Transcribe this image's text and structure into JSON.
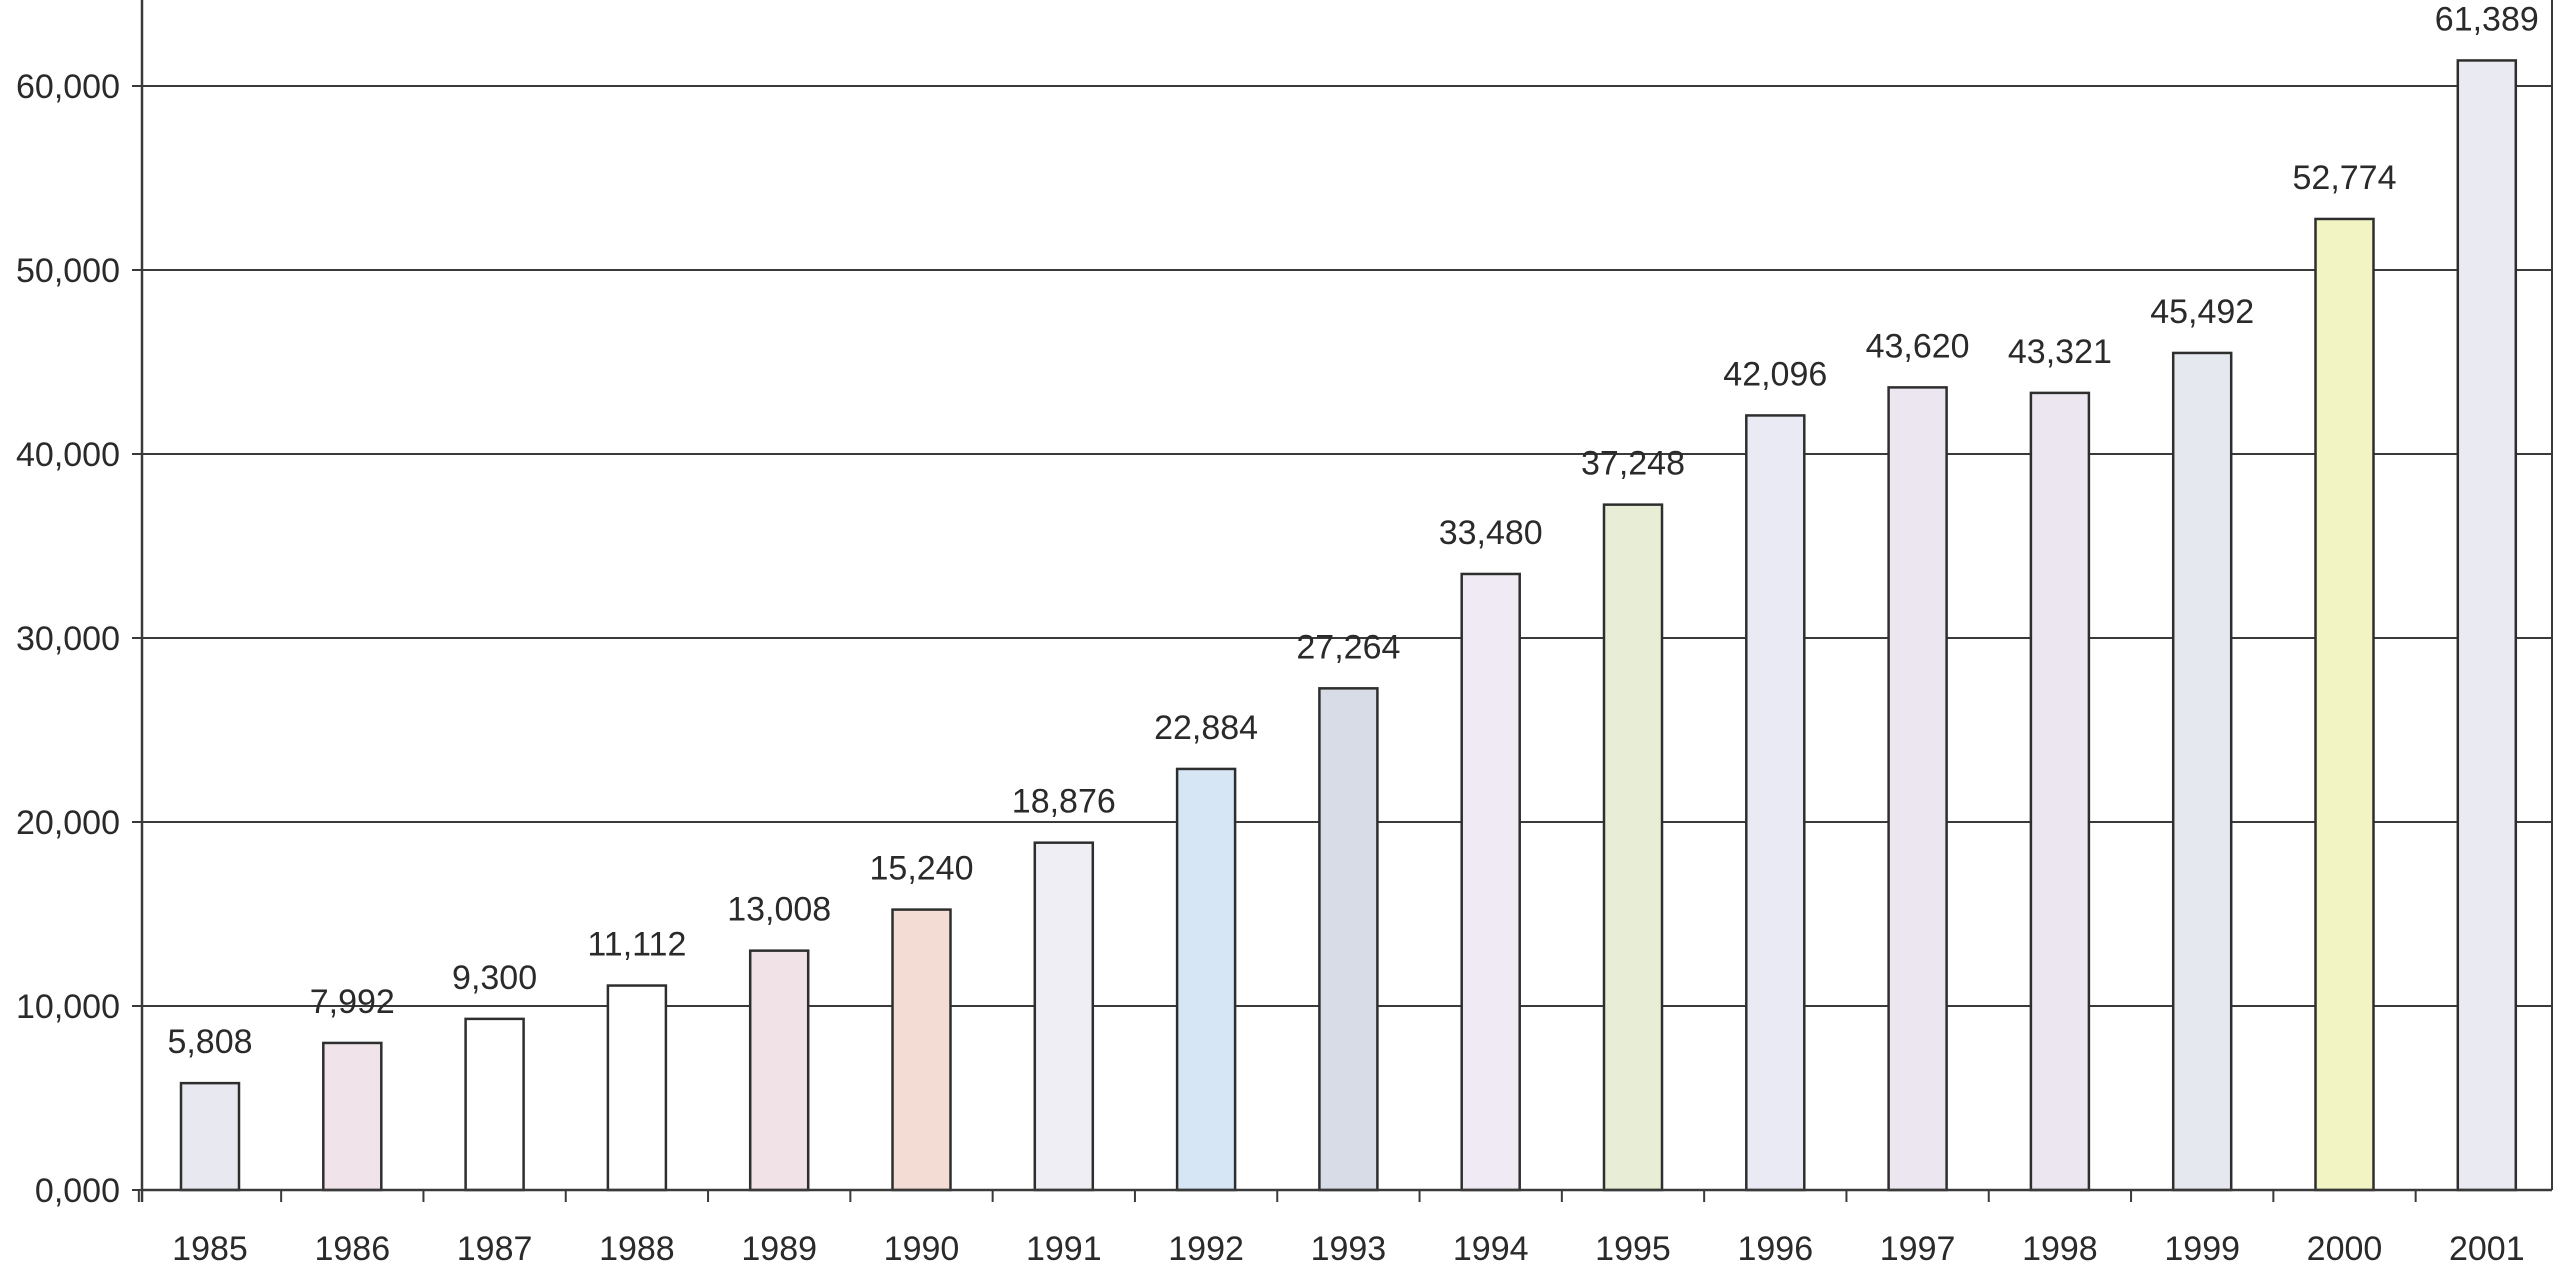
{
  "chart_data": {
    "type": "bar",
    "title": "",
    "xlabel": "",
    "ylabel": "",
    "ylim": [
      0,
      60000
    ],
    "yticks": [
      0,
      10000,
      20000,
      30000,
      40000,
      50000,
      60000
    ],
    "ytick_labels": [
      "0,000",
      "10,000",
      "20,000",
      "30,000",
      "40,000",
      "50,000",
      "60,000"
    ],
    "grid": true,
    "legend": "none",
    "categories": [
      "1985",
      "1986",
      "1987",
      "1988",
      "1989",
      "1990",
      "1991",
      "1992",
      "1993",
      "1994",
      "1995",
      "1996",
      "1997",
      "1998",
      "1999",
      "2000",
      "2001"
    ],
    "values": [
      5808,
      7992,
      9300,
      11112,
      13008,
      15240,
      18876,
      22884,
      27264,
      33480,
      37248,
      42096,
      43620,
      43321,
      45492,
      52774,
      61389
    ],
    "data_labels": [
      "5,808",
      "7,992",
      "9,300",
      "11,112",
      "13,008",
      "15,240",
      "18,876",
      "22,884",
      "27,264",
      "33,480",
      "37,248",
      "42,096",
      "43,620",
      "43,321",
      "45,492",
      "52,774",
      "61,389"
    ],
    "bar_colors": [
      "#e8e8f0",
      "#f0e4ea",
      "#ffffff",
      "#ffffff",
      "#f0e2e6",
      "#f2dcd4",
      "#eeeef4",
      "#d6e6f4",
      "#d8dce6",
      "#f0eaf4",
      "#e8eed6",
      "#eaeaf4",
      "#ece6f0",
      "#ece6f0",
      "#e6e8f0",
      "#f2f4c4",
      "#eaeaf2"
    ]
  }
}
